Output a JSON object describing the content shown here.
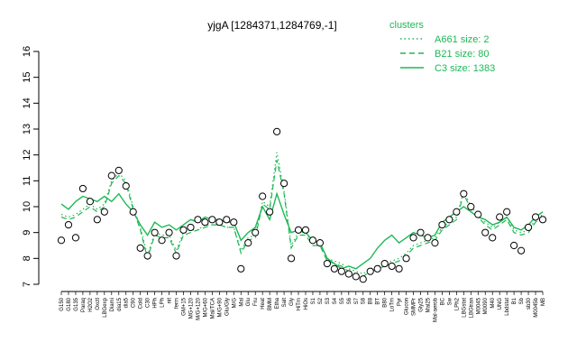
{
  "chart_data": {
    "type": "line",
    "title": "yjgA [1284371,1284769,-1]",
    "xlabel": "",
    "ylabel": "",
    "ylim": [
      7,
      16
    ],
    "yticks": [
      7,
      8,
      9,
      10,
      11,
      12,
      13,
      14,
      15,
      16
    ],
    "xtick_labels": [
      "G150",
      "G180",
      "G135",
      "Paraq",
      "H2O2",
      "Oxctl",
      "LBGexp",
      "Diami",
      "dia15",
      "dia5",
      "C90",
      "Cold",
      "C30",
      "HPh",
      "LPh",
      "nit",
      "ferm",
      "GM+15",
      "MG+120",
      "M/G+120",
      "M/G+60",
      "Mal/TCA",
      "M/G+90",
      "Glu/Gly",
      "M/G",
      "Mal",
      "Glu",
      "Fru",
      "Heat",
      "BMM",
      "Etha",
      "Salt",
      "Gly",
      "HiTm",
      "HiOs",
      "S1",
      "S2",
      "S3",
      "S4",
      "S5",
      "S6",
      "S7",
      "S8",
      "B8",
      "BT",
      "B80",
      "LoTm",
      "Pyr",
      "Glucon",
      "SMMPr",
      "Gly25",
      "Mal25",
      "Mal-aerob",
      "BC",
      "Sw",
      "LPh2",
      "LBGstat",
      "LBGtran",
      "M0045",
      "M0090",
      "M40",
      "UNG",
      "Lbdstat",
      "B1",
      "Sb",
      "sb30",
      "M0045b",
      "MB"
    ],
    "series": [
      {
        "name": "A661 size: 2",
        "style": "dotted",
        "values": [
          9.7,
          9.6,
          9.7,
          9.9,
          10.1,
          9.9,
          10.1,
          11.0,
          11.3,
          11.0,
          10.0,
          9.2,
          8.1,
          9.0,
          8.9,
          8.9,
          8.3,
          9.0,
          9.1,
          9.1,
          9.3,
          9.3,
          9.3,
          9.2,
          9.2,
          8.3,
          8.8,
          8.9,
          10.2,
          10.0,
          12.1,
          10.6,
          8.5,
          9.0,
          9.0,
          8.6,
          8.6,
          8.0,
          7.9,
          7.8,
          7.6,
          7.5,
          7.4,
          7.6,
          7.7,
          7.8,
          7.9,
          8.0,
          8.2,
          8.5,
          8.6,
          8.7,
          8.8,
          9.2,
          9.4,
          9.6,
          10.6,
          10.0,
          9.7,
          9.4,
          9.2,
          9.4,
          9.6,
          9.1,
          9.0,
          9.1,
          9.5,
          9.7
        ]
      },
      {
        "name": "B21 size: 80",
        "style": "dashed",
        "values": [
          9.6,
          9.5,
          9.6,
          9.8,
          10.0,
          9.8,
          10.0,
          10.9,
          11.2,
          10.9,
          9.9,
          9.1,
          8.0,
          8.9,
          8.8,
          8.8,
          8.2,
          8.9,
          9.0,
          9.1,
          9.2,
          9.3,
          9.3,
          9.2,
          9.2,
          8.2,
          8.7,
          8.8,
          10.1,
          9.9,
          11.8,
          10.5,
          8.4,
          8.9,
          8.9,
          8.5,
          8.5,
          7.9,
          7.8,
          7.7,
          7.5,
          7.4,
          7.3,
          7.5,
          7.6,
          7.7,
          7.8,
          7.9,
          8.1,
          8.4,
          8.5,
          8.6,
          8.7,
          9.1,
          9.3,
          9.5,
          10.5,
          9.9,
          9.6,
          9.3,
          9.1,
          9.3,
          9.5,
          9.0,
          8.9,
          9.0,
          9.4,
          9.6
        ]
      },
      {
        "name": "C3 size: 1383",
        "style": "solid",
        "values": [
          10.1,
          9.9,
          10.2,
          10.4,
          10.3,
          10.2,
          10.4,
          10.2,
          10.5,
          10.1,
          9.8,
          9.3,
          8.9,
          9.4,
          9.2,
          9.3,
          9.1,
          9.3,
          9.5,
          9.4,
          9.6,
          9.5,
          9.5,
          9.4,
          9.4,
          8.7,
          9.0,
          9.2,
          10.0,
          9.5,
          10.5,
          9.7,
          9.0,
          9.1,
          9.0,
          8.7,
          8.6,
          8.0,
          7.8,
          7.6,
          7.7,
          7.6,
          7.8,
          8.0,
          8.4,
          8.7,
          8.9,
          8.6,
          8.8,
          9.0,
          8.9,
          8.8,
          8.9,
          9.4,
          9.6,
          9.8,
          10.0,
          9.8,
          9.6,
          9.5,
          9.3,
          9.4,
          9.6,
          9.2,
          9.1,
          9.3,
          9.6,
          9.8
        ]
      }
    ],
    "points": [
      8.7,
      9.3,
      8.8,
      10.7,
      10.2,
      9.5,
      9.8,
      11.2,
      11.4,
      10.8,
      9.8,
      8.4,
      8.1,
      9.0,
      8.7,
      9.0,
      8.1,
      9.1,
      9.2,
      9.5,
      9.4,
      9.5,
      9.4,
      9.5,
      9.4,
      7.6,
      8.6,
      9.0,
      10.4,
      9.8,
      12.9,
      10.9,
      8.0,
      9.1,
      9.1,
      8.7,
      8.6,
      7.8,
      7.6,
      7.5,
      7.4,
      7.3,
      7.2,
      7.5,
      7.6,
      7.8,
      7.7,
      7.6,
      8.0,
      8.8,
      9.0,
      8.8,
      8.6,
      9.3,
      9.5,
      9.8,
      10.5,
      10.0,
      9.7,
      9.0,
      8.8,
      9.6,
      9.8,
      8.5,
      8.3,
      9.2,
      9.6,
      9.5
    ],
    "legend": {
      "title": "clusters",
      "position": "top-right"
    },
    "colors": {
      "line": "#1db954",
      "point_fill": "#ffffff",
      "point_stroke": "#000000",
      "axis": "#000000"
    }
  }
}
